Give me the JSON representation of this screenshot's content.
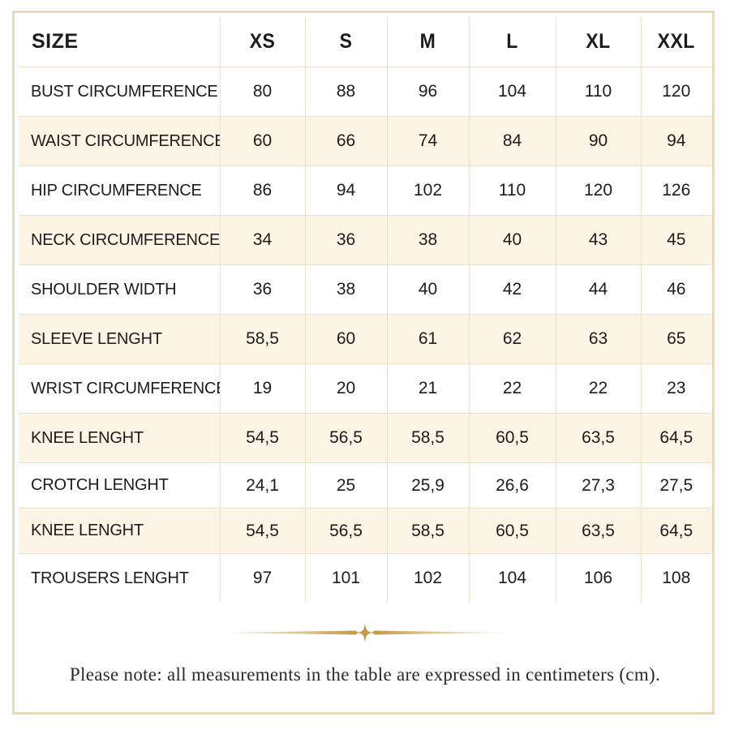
{
  "table": {
    "header": [
      "SIZE",
      "XS",
      "S",
      "M",
      "L",
      "XL",
      "XXL"
    ],
    "rows": [
      {
        "label": "BUST CIRCUMFERENCE",
        "values": [
          "80",
          "88",
          "96",
          "104",
          "110",
          "120"
        ]
      },
      {
        "label": "WAIST CIRCUMFERENCE",
        "values": [
          "60",
          "66",
          "74",
          "84",
          "90",
          "94"
        ]
      },
      {
        "label": "HIP CIRCUMFERENCE",
        "values": [
          "86",
          "94",
          "102",
          "110",
          "120",
          "126"
        ]
      },
      {
        "label": "NECK CIRCUMFERENCE",
        "values": [
          "34",
          "36",
          "38",
          "40",
          "43",
          "45"
        ]
      },
      {
        "label": "SHOULDER WIDTH",
        "values": [
          "36",
          "38",
          "40",
          "42",
          "44",
          "46"
        ]
      },
      {
        "label": "SLEEVE LENGHT",
        "values": [
          "58,5",
          "60",
          "61",
          "62",
          "63",
          "65"
        ]
      },
      {
        "label": "WRIST CIRCUMFERENCE",
        "values": [
          "19",
          "20",
          "21",
          "22",
          "22",
          "23"
        ]
      },
      {
        "label": "KNEE LENGHT",
        "values": [
          "54,5",
          "56,5",
          "58,5",
          "60,5",
          "63,5",
          "64,5"
        ]
      },
      {
        "label": "CROTCH LENGHT",
        "values": [
          "24,1",
          "25",
          "25,9",
          "26,6",
          "27,3",
          "27,5"
        ]
      },
      {
        "label": "KNEE LENGHT",
        "values": [
          "54,5",
          "56,5",
          "58,5",
          "60,5",
          "63,5",
          "64,5"
        ]
      },
      {
        "label": "TROUSERS LENGHT",
        "values": [
          "97",
          "101",
          "102",
          "104",
          "106",
          "108"
        ]
      }
    ]
  },
  "note": "Please note: all measurements in the table are expressed in centimeters (cm).",
  "colors": {
    "frame_border": "#e9d9bd",
    "row_shade": "#fcf4e5",
    "gridline": "#eee1c9",
    "divider_gold": "#c9a55a"
  },
  "icons": {
    "divider": "gold-star-divider-icon"
  }
}
